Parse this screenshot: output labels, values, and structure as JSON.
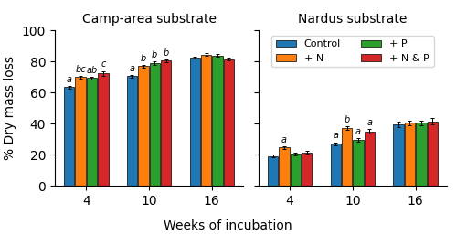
{
  "chart_data": [
    {
      "type": "bar",
      "title": "Camp-area substrate",
      "xlabel": "Weeks of incubation",
      "ylabel": "% Dry mass loss",
      "categories": [
        "4",
        "10",
        "16"
      ],
      "series": [
        {
          "name": "Control",
          "values": [
            63.5,
            70.5,
            82.5
          ],
          "errors": [
            1.0,
            1.0,
            0.8
          ],
          "annotations": [
            "a",
            "a",
            null
          ]
        },
        {
          "name": "+ N",
          "values": [
            70.0,
            77.0,
            84.5
          ],
          "errors": [
            1.0,
            1.0,
            0.8
          ],
          "annotations": [
            "bc",
            "b",
            null
          ]
        },
        {
          "name": "+ P",
          "values": [
            69.5,
            79.0,
            84.0
          ],
          "errors": [
            0.8,
            1.0,
            0.8
          ],
          "annotations": [
            "ab",
            "b",
            null
          ]
        },
        {
          "name": "+ N & P",
          "values": [
            72.5,
            80.5,
            81.5
          ],
          "errors": [
            1.5,
            1.0,
            1.0
          ],
          "annotations": [
            "c",
            "b",
            null
          ]
        }
      ],
      "ylim": [
        0,
        100
      ],
      "yticks": [
        0,
        20,
        40,
        60,
        80,
        100
      ]
    },
    {
      "type": "bar",
      "title": "Nardus substrate",
      "categories": [
        "4",
        "10",
        "16"
      ],
      "series": [
        {
          "name": "Control",
          "values": [
            19.0,
            27.0,
            39.5
          ],
          "errors": [
            0.8,
            1.0,
            1.5
          ],
          "annotations": [
            null,
            "a",
            null
          ]
        },
        {
          "name": "+ N",
          "values": [
            24.5,
            37.0,
            40.5
          ],
          "errors": [
            1.0,
            1.2,
            1.5
          ],
          "annotations": [
            "a",
            "b",
            null
          ]
        },
        {
          "name": "+ P",
          "values": [
            20.5,
            29.5,
            40.5
          ],
          "errors": [
            0.8,
            1.0,
            1.5
          ],
          "annotations": [
            null,
            "a",
            null
          ]
        },
        {
          "name": "+ N & P",
          "values": [
            21.5,
            35.0,
            41.5
          ],
          "errors": [
            1.0,
            1.5,
            2.0
          ],
          "annotations": [
            null,
            "a",
            null
          ]
        }
      ],
      "ylim": [
        0,
        100
      ],
      "yticks": [
        0,
        20,
        40,
        60,
        80,
        100
      ],
      "tick_labels": "x",
      "legend": "upper center"
    }
  ]
}
